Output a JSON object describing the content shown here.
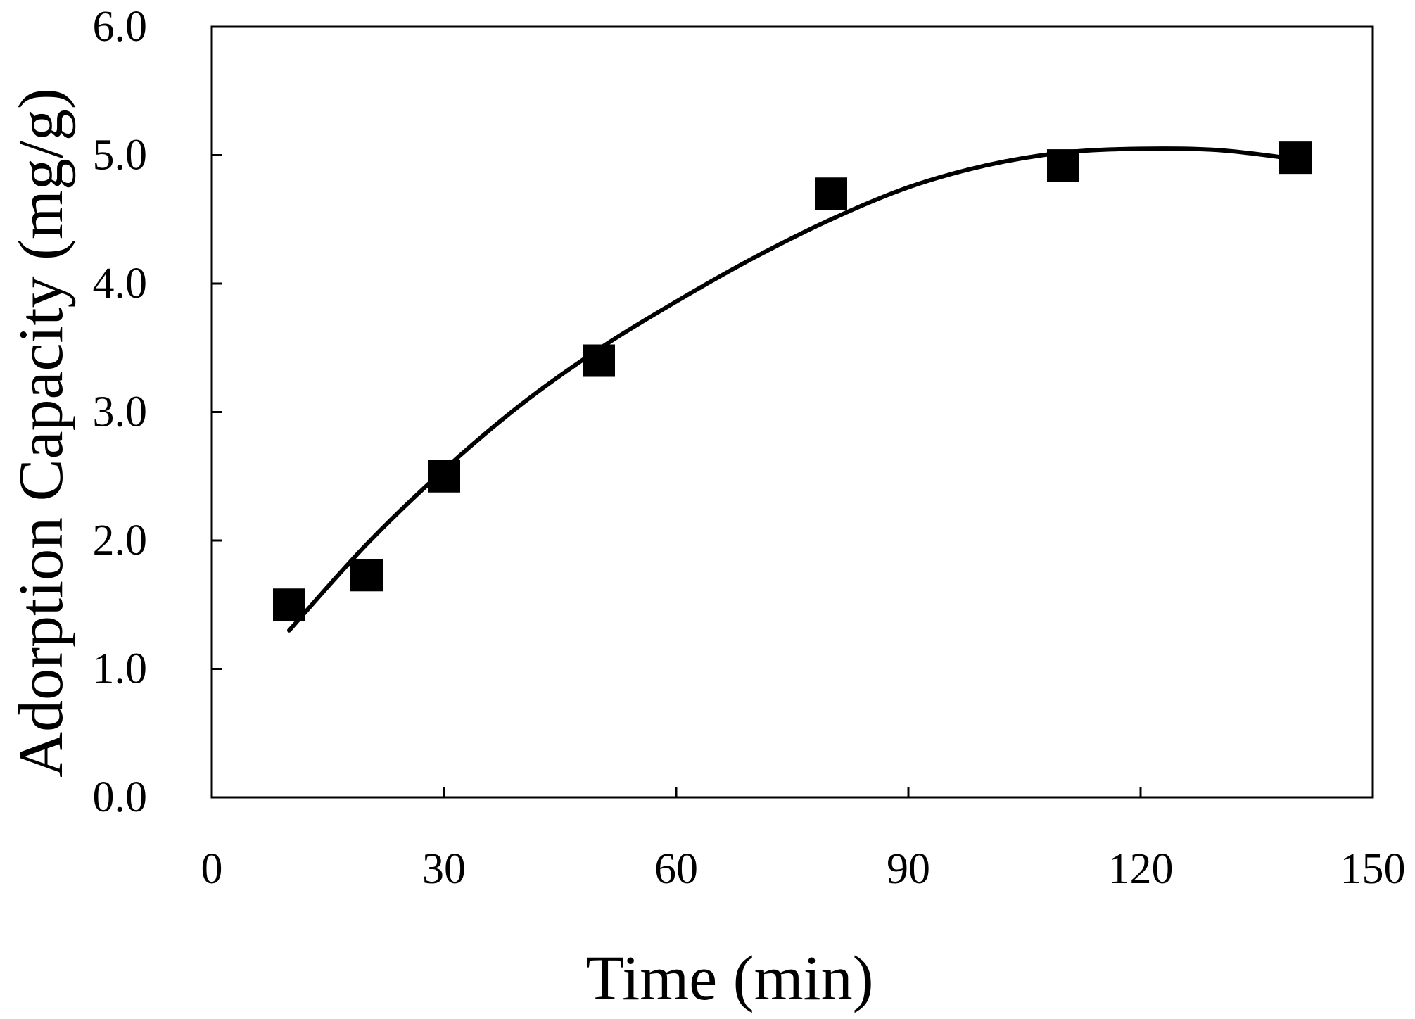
{
  "chart_data": {
    "type": "scatter",
    "title": "",
    "xlabel": "Time (min)",
    "ylabel": "Adorption Capacity (mg/g)",
    "xlim": [
      0,
      150
    ],
    "ylim": [
      0.0,
      6.0
    ],
    "x_ticks": [
      "0",
      "30",
      "60",
      "90",
      "120",
      "150"
    ],
    "y_ticks": [
      "0.0",
      "1.0",
      "2.0",
      "3.0",
      "4.0",
      "5.0",
      "6.0"
    ],
    "grid": false,
    "legend": "none",
    "series": [
      {
        "kind": "scatter",
        "marker": "square",
        "color": "#000000",
        "x": [
          10,
          20,
          30,
          50,
          80,
          110,
          140
        ],
        "y": [
          1.5,
          1.73,
          2.5,
          3.4,
          4.7,
          4.92,
          4.98
        ]
      },
      {
        "kind": "fit-curve",
        "color": "#000000",
        "x": [
          10,
          20,
          30,
          40,
          50,
          60,
          70,
          80,
          90,
          100,
          110,
          120,
          130,
          140
        ],
        "y": [
          1.3,
          1.97,
          2.55,
          3.06,
          3.49,
          3.86,
          4.2,
          4.5,
          4.75,
          4.92,
          5.02,
          5.05,
          5.04,
          4.97
        ]
      }
    ]
  }
}
